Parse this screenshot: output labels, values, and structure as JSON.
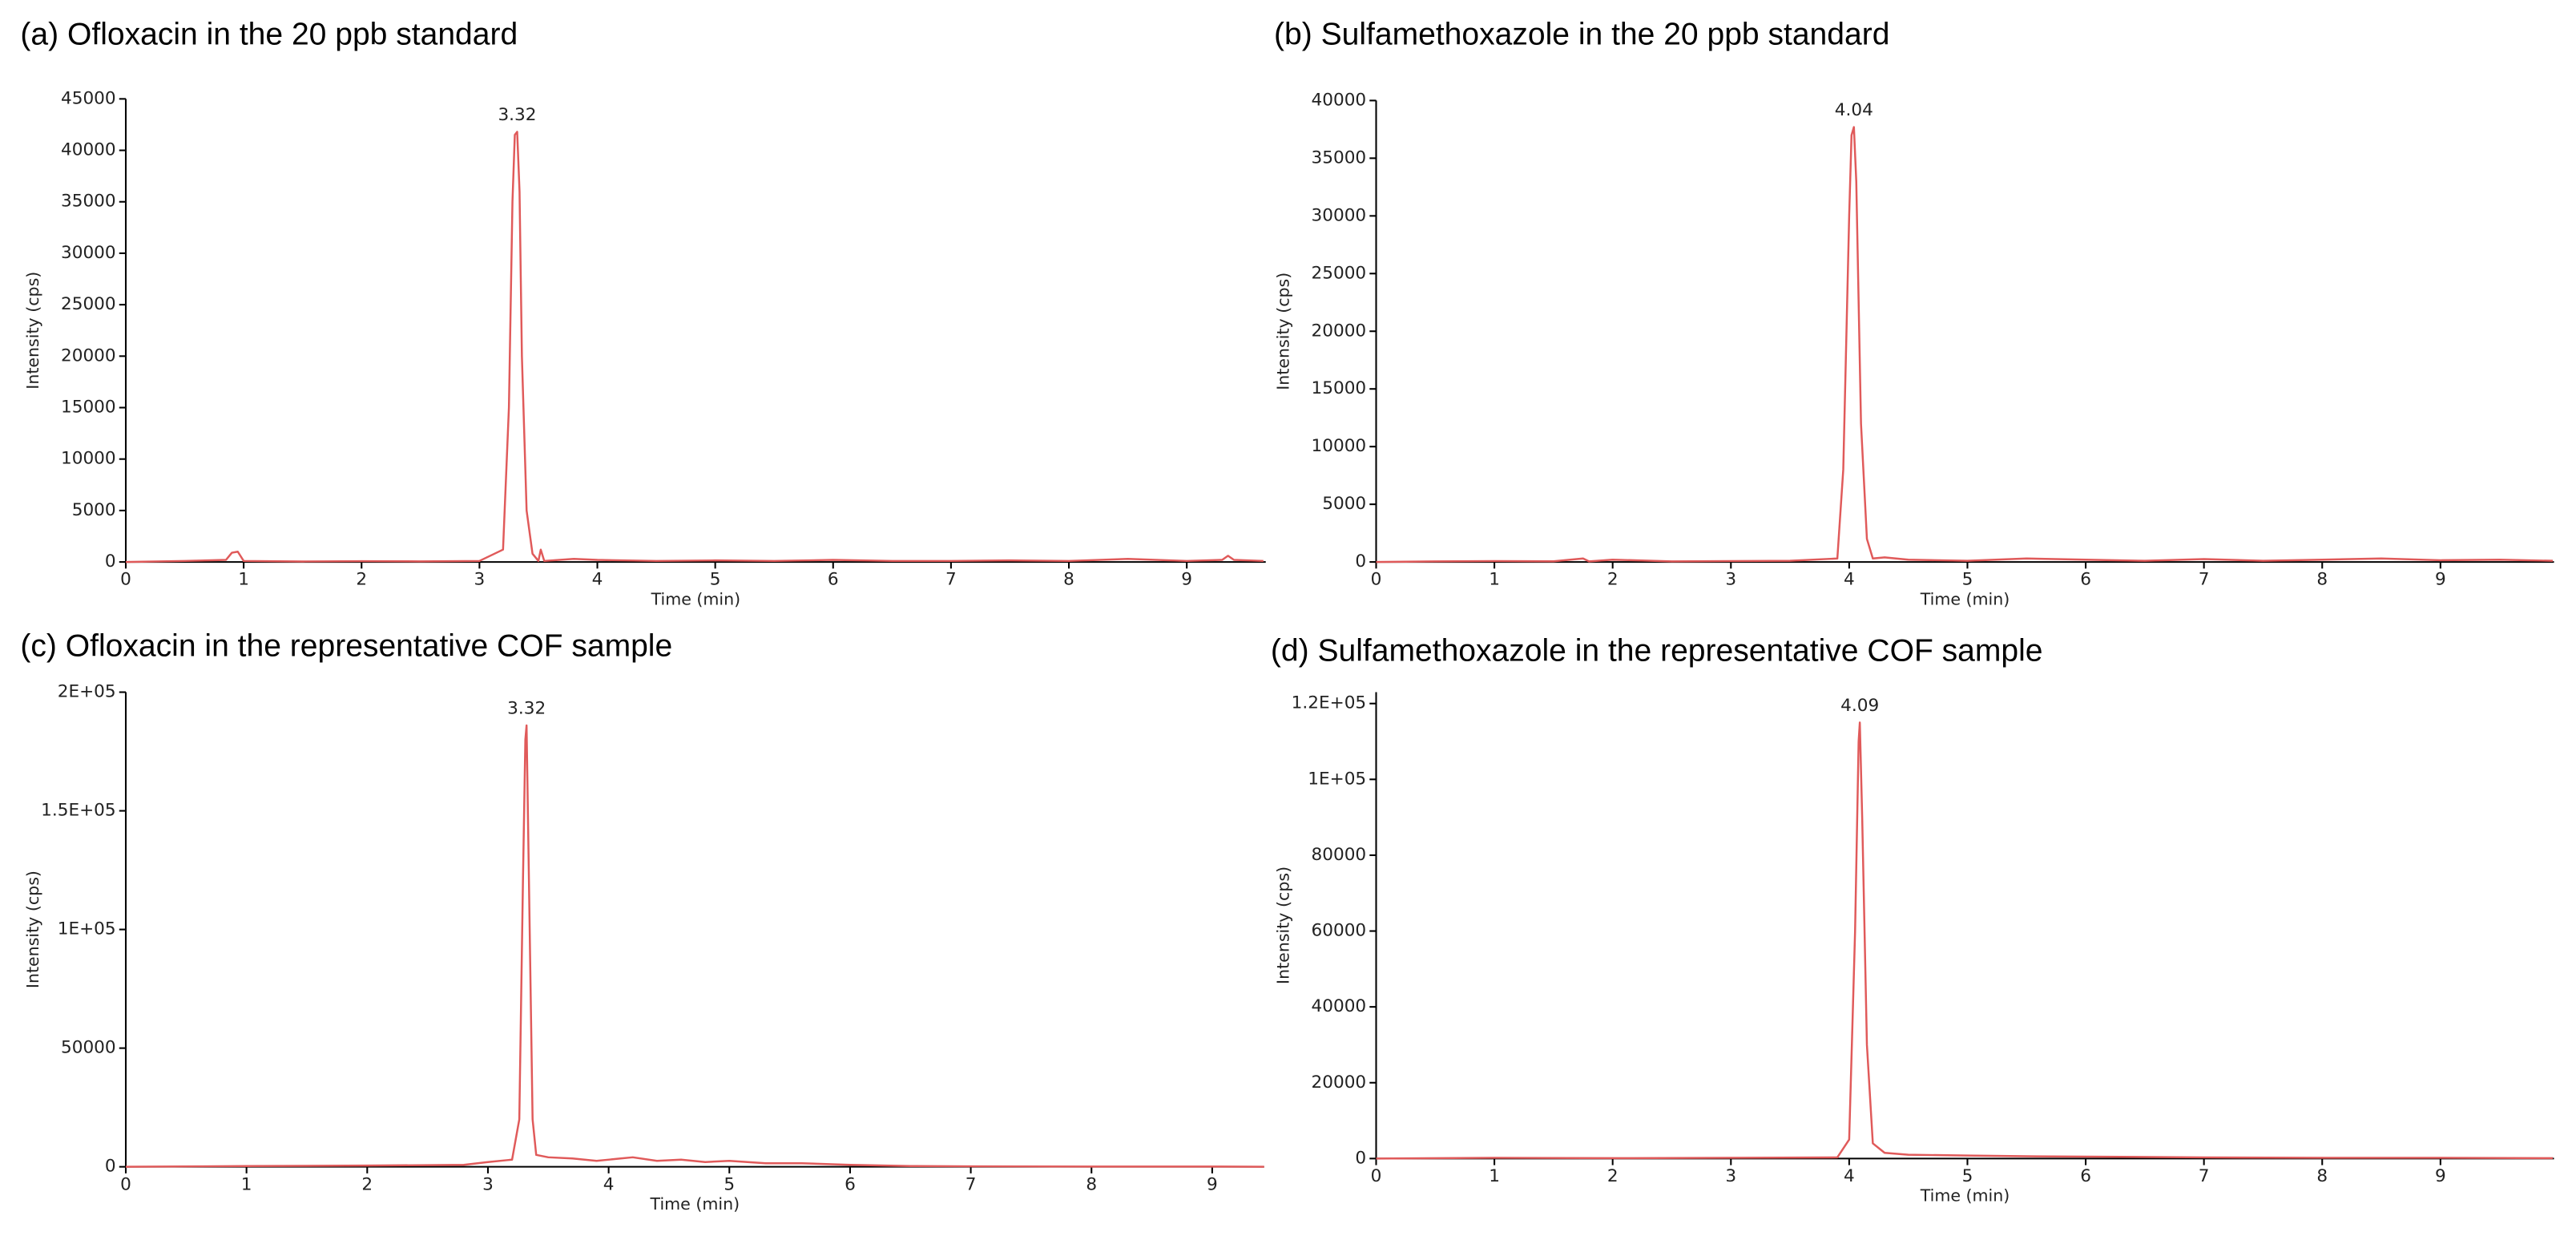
{
  "chart_data": [
    {
      "type": "line",
      "title": "(a) Ofloxacin in the 20 ppb standard",
      "xlabel": "Time (min)",
      "ylabel": "Intensity (cps)",
      "x": [
        0,
        0.5,
        0.85,
        0.9,
        0.95,
        1.0,
        1.5,
        2.0,
        2.5,
        3.0,
        3.2,
        3.25,
        3.28,
        3.3,
        3.32,
        3.34,
        3.36,
        3.4,
        3.45,
        3.5,
        3.52,
        3.55,
        3.8,
        4.0,
        4.5,
        5.0,
        5.5,
        6.0,
        6.5,
        7.0,
        7.5,
        8.0,
        8.5,
        9.0,
        9.3,
        9.35,
        9.4,
        9.65
      ],
      "series": [
        {
          "color": "#e05a5a",
          "values": [
            0,
            100,
            200,
            900,
            1000,
            100,
            50,
            80,
            60,
            100,
            1200,
            15000,
            35000,
            41500,
            41800,
            36000,
            20000,
            5000,
            800,
            100,
            1200,
            100,
            300,
            200,
            100,
            150,
            100,
            200,
            100,
            100,
            150,
            100,
            300,
            100,
            200,
            600,
            200,
            100
          ]
        }
      ],
      "annotations": [
        {
          "text": "3.32",
          "x": 3.32
        }
      ],
      "xlim": [
        0,
        9.67
      ],
      "xticks": [
        0,
        1,
        2,
        3,
        4,
        5,
        6,
        7,
        8,
        9
      ],
      "ylim": [
        0,
        45000
      ],
      "yticks": [
        0,
        5000,
        10000,
        15000,
        20000,
        25000,
        30000,
        35000,
        40000,
        45000
      ]
    },
    {
      "type": "line",
      "title": "(b) Sulfamethoxazole in the 20 ppb standard",
      "xlabel": "Time (min)",
      "ylabel": "Intensity (cps)",
      "x": [
        0,
        0.5,
        1,
        1.5,
        1.75,
        1.8,
        2,
        2.5,
        3,
        3.5,
        3.9,
        3.95,
        4.0,
        4.02,
        4.04,
        4.06,
        4.1,
        4.15,
        4.2,
        4.3,
        4.5,
        5,
        5.5,
        6,
        6.5,
        7,
        7.5,
        8,
        8.5,
        9,
        9.5,
        9.95
      ],
      "series": [
        {
          "color": "#e05a5a",
          "values": [
            0,
            50,
            80,
            60,
            300,
            50,
            200,
            50,
            80,
            100,
            300,
            8000,
            30000,
            37000,
            37700,
            33000,
            12000,
            2000,
            300,
            400,
            200,
            100,
            300,
            200,
            100,
            250,
            100,
            200,
            300,
            150,
            200,
            100
          ]
        }
      ],
      "annotations": [
        {
          "text": "4.04",
          "x": 4.04
        }
      ],
      "xlim": [
        0,
        9.96
      ],
      "xticks": [
        0,
        1,
        2,
        3,
        4,
        5,
        6,
        7,
        8,
        9
      ],
      "ylim": [
        0,
        40000
      ],
      "yticks": [
        0,
        5000,
        10000,
        15000,
        20000,
        25000,
        30000,
        35000,
        40000
      ]
    },
    {
      "type": "line",
      "title": "(c) Ofloxacin in the representative COF sample",
      "xlabel": "Time (min)",
      "ylabel": "Intensity (cps)",
      "x": [
        0,
        1,
        2,
        2.8,
        3.0,
        3.2,
        3.26,
        3.29,
        3.31,
        3.32,
        3.34,
        3.37,
        3.4,
        3.5,
        3.7,
        3.9,
        4.1,
        4.2,
        4.4,
        4.6,
        4.8,
        5.0,
        5.3,
        5.6,
        6.0,
        6.5,
        7,
        8,
        9,
        9.43
      ],
      "series": [
        {
          "color": "#e05a5a",
          "values": [
            0,
            300,
            500,
            800,
            2000,
            3000,
            20000,
            120000,
            180000,
            186000,
            120000,
            20000,
            5000,
            4000,
            3500,
            2500,
            3500,
            4000,
            2500,
            3000,
            2000,
            2500,
            1500,
            1500,
            800,
            300,
            200,
            100,
            100,
            0
          ]
        }
      ],
      "annotations": [
        {
          "text": "3.32",
          "x": 3.32
        }
      ],
      "xlim": [
        0,
        9.43
      ],
      "xticks": [
        0,
        1,
        2,
        3,
        4,
        5,
        6,
        7,
        8,
        9
      ],
      "ylim": [
        0,
        200000
      ],
      "yticks": [
        0,
        50000,
        {
          "value": 100000,
          "label": "1E+05"
        },
        {
          "value": 150000,
          "label": "1.5E+05"
        },
        {
          "value": 200000,
          "label": "2E+05"
        }
      ]
    },
    {
      "type": "line",
      "title": "(d) Sulfamethoxazole in the representative COF sample",
      "xlabel": "Time (min)",
      "ylabel": "Intensity (cps)",
      "x": [
        0,
        1,
        2,
        3,
        3.9,
        4.0,
        4.05,
        4.08,
        4.09,
        4.11,
        4.15,
        4.2,
        4.3,
        4.5,
        5,
        5.5,
        6,
        7,
        8,
        9,
        9.95
      ],
      "series": [
        {
          "color": "#e05a5a",
          "values": [
            0,
            200,
            100,
            200,
            300,
            5000,
            60000,
            110000,
            115000,
            90000,
            30000,
            4000,
            1500,
            1000,
            800,
            600,
            500,
            300,
            200,
            200,
            100
          ]
        }
      ],
      "annotations": [
        {
          "text": "4.09",
          "x": 4.09
        }
      ],
      "xlim": [
        0,
        9.96
      ],
      "xticks": [
        0,
        1,
        2,
        3,
        4,
        5,
        6,
        7,
        8,
        9
      ],
      "ylim": [
        0,
        123000
      ],
      "yticks": [
        0,
        20000,
        40000,
        60000,
        80000,
        {
          "value": 100000,
          "label": "1E+05"
        },
        {
          "value": 120000,
          "label": "1.2E+05"
        }
      ]
    }
  ]
}
